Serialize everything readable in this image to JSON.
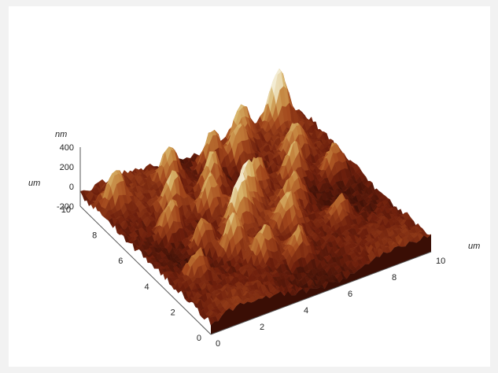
{
  "chart_data": {
    "type": "surface3d",
    "title": "",
    "x_axis": {
      "unit": "um",
      "ticks": [
        "0",
        "2",
        "4",
        "6",
        "8",
        "10"
      ],
      "range": [
        0,
        10
      ]
    },
    "y_axis": {
      "unit": "um",
      "ticks": [
        "0",
        "2",
        "4",
        "6",
        "8",
        "10"
      ],
      "range": [
        0,
        10
      ]
    },
    "z_axis": {
      "unit": "nm",
      "ticks": [
        "400",
        "200",
        "0",
        "-200"
      ],
      "range": [
        -200,
        400
      ]
    },
    "colormap": [
      "#2a0a04",
      "#6e1f0c",
      "#a2471c",
      "#c27e3a",
      "#d8b56c",
      "#f3ecd3"
    ],
    "grid": false,
    "legend": "none",
    "peaks": [
      {
        "x": 4.2,
        "y": 4.8,
        "z": 420
      },
      {
        "x": 5.0,
        "y": 5.6,
        "z": 380
      },
      {
        "x": 3.2,
        "y": 3.6,
        "z": 320
      },
      {
        "x": 4.6,
        "y": 7.6,
        "z": 330
      },
      {
        "x": 6.4,
        "y": 8.6,
        "z": 300
      },
      {
        "x": 8.8,
        "y": 9.6,
        "z": 460
      },
      {
        "x": 7.6,
        "y": 6.4,
        "z": 280
      },
      {
        "x": 2.6,
        "y": 7.2,
        "z": 300
      },
      {
        "x": 1.8,
        "y": 6.0,
        "z": 260
      },
      {
        "x": 5.8,
        "y": 3.8,
        "z": 240
      },
      {
        "x": 6.8,
        "y": 5.0,
        "z": 230
      },
      {
        "x": 3.8,
        "y": 6.4,
        "z": 270
      },
      {
        "x": 5.4,
        "y": 9.0,
        "z": 300
      },
      {
        "x": 7.0,
        "y": 9.4,
        "z": 330
      },
      {
        "x": 2.4,
        "y": 4.6,
        "z": 220
      },
      {
        "x": 8.4,
        "y": 7.6,
        "z": 250
      },
      {
        "x": 9.2,
        "y": 6.0,
        "z": 200
      },
      {
        "x": 1.2,
        "y": 3.0,
        "z": 200
      },
      {
        "x": 4.0,
        "y": 2.6,
        "z": 230
      },
      {
        "x": 3.4,
        "y": 8.8,
        "z": 280
      },
      {
        "x": 6.0,
        "y": 6.6,
        "z": 250
      },
      {
        "x": 0.8,
        "y": 8.6,
        "z": 240
      },
      {
        "x": 7.8,
        "y": 3.2,
        "z": 180
      },
      {
        "x": 5.2,
        "y": 2.0,
        "z": 200
      }
    ]
  }
}
